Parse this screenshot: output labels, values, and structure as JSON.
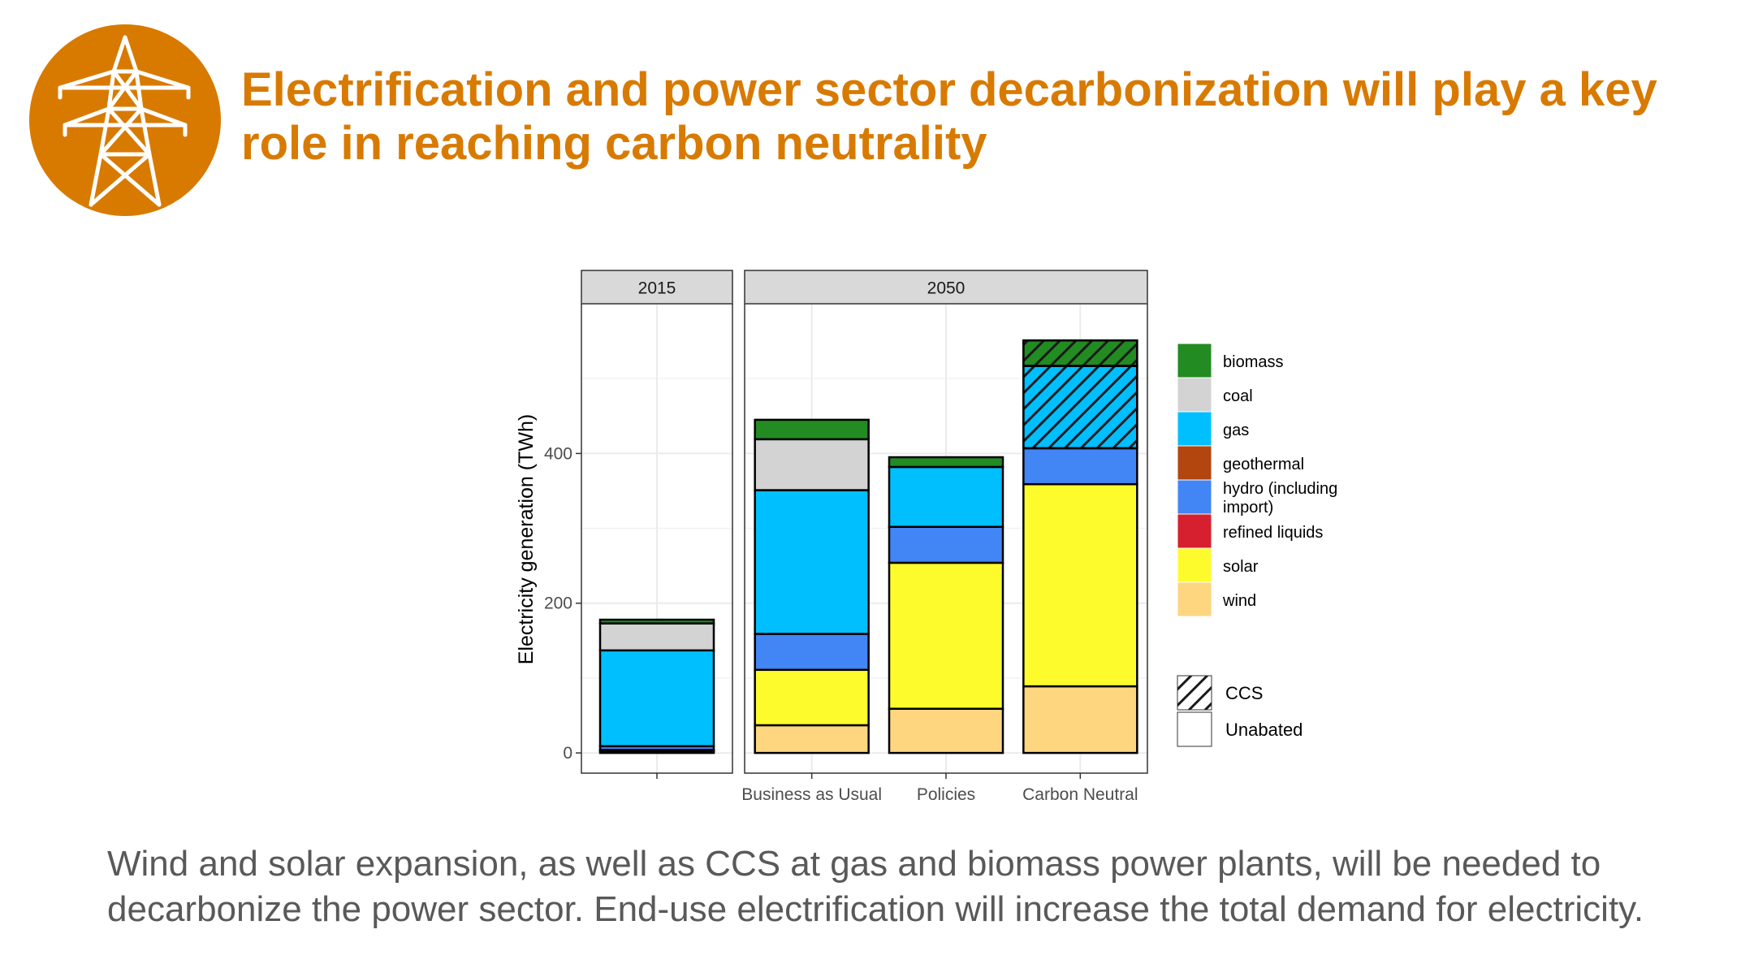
{
  "slide": {
    "title": "Electrification and power sector decarbonization will play a key role in reaching carbon neutrality",
    "caption_line1": "Wind and solar expansion, as well as CCS at gas and biomass power plants, will be needed to",
    "caption_line2": "decarbonize the power sector. End-use electrification will increase the total demand for electricity.",
    "icon": "power-transmission-tower-icon",
    "accent_color": "#D87A00"
  },
  "chart_data": {
    "type": "bar",
    "stacked": true,
    "ylabel": "Electricity generation (TWh)",
    "ylim": [
      -27,
      600
    ],
    "yticks": [
      0,
      200,
      400
    ],
    "grid": true,
    "legend_position": "right",
    "panels": [
      {
        "label": "2015",
        "categories": [
          ""
        ],
        "series": [
          {
            "name": "wind",
            "color": "#FDD67F",
            "values": [
              {
                "unabated": 2,
                "ccs": 0
              }
            ]
          },
          {
            "name": "solar",
            "color": "#FEFB2D",
            "values": [
              {
                "unabated": 1,
                "ccs": 0
              }
            ]
          },
          {
            "name": "refined liquids",
            "color": "#D7202F",
            "values": [
              {
                "unabated": 1,
                "ccs": 0
              }
            ]
          },
          {
            "name": "hydro (including import)",
            "color": "#4285F4",
            "values": [
              {
                "unabated": 5,
                "ccs": 0
              }
            ]
          },
          {
            "name": "geothermal",
            "color": "#B2460E",
            "values": [
              {
                "unabated": 0,
                "ccs": 0
              }
            ]
          },
          {
            "name": "gas",
            "color": "#00BFFF",
            "values": [
              {
                "unabated": 128,
                "ccs": 0
              }
            ]
          },
          {
            "name": "coal",
            "color": "#D3D3D3",
            "values": [
              {
                "unabated": 36,
                "ccs": 0
              }
            ]
          },
          {
            "name": "biomass",
            "color": "#228B22",
            "values": [
              {
                "unabated": 5,
                "ccs": 0
              }
            ]
          }
        ]
      },
      {
        "label": "2050",
        "categories": [
          "Business as Usual",
          "Policies",
          "Carbon Neutral"
        ],
        "series": [
          {
            "name": "wind",
            "color": "#FDD67F",
            "values": [
              {
                "unabated": 37,
                "ccs": 0
              },
              {
                "unabated": 59,
                "ccs": 0
              },
              {
                "unabated": 89,
                "ccs": 0
              }
            ]
          },
          {
            "name": "solar",
            "color": "#FEFB2D",
            "values": [
              {
                "unabated": 74,
                "ccs": 0
              },
              {
                "unabated": 195,
                "ccs": 0
              },
              {
                "unabated": 270,
                "ccs": 0
              }
            ]
          },
          {
            "name": "refined liquids",
            "color": "#D7202F",
            "values": [
              {
                "unabated": 0,
                "ccs": 0
              },
              {
                "unabated": 0,
                "ccs": 0
              },
              {
                "unabated": 0,
                "ccs": 0
              }
            ]
          },
          {
            "name": "hydro (including import)",
            "color": "#4285F4",
            "values": [
              {
                "unabated": 48,
                "ccs": 0
              },
              {
                "unabated": 48,
                "ccs": 0
              },
              {
                "unabated": 48,
                "ccs": 0
              }
            ]
          },
          {
            "name": "geothermal",
            "color": "#B2460E",
            "values": [
              {
                "unabated": 0,
                "ccs": 0
              },
              {
                "unabated": 0,
                "ccs": 0
              },
              {
                "unabated": 0,
                "ccs": 0
              }
            ]
          },
          {
            "name": "gas",
            "color": "#00BFFF",
            "values": [
              {
                "unabated": 192,
                "ccs": 0
              },
              {
                "unabated": 80,
                "ccs": 0
              },
              {
                "unabated": 0,
                "ccs": 110
              }
            ]
          },
          {
            "name": "coal",
            "color": "#D3D3D3",
            "values": [
              {
                "unabated": 68,
                "ccs": 0
              },
              {
                "unabated": 0,
                "ccs": 0
              },
              {
                "unabated": 0,
                "ccs": 0
              }
            ]
          },
          {
            "name": "biomass",
            "color": "#228B22",
            "values": [
              {
                "unabated": 26,
                "ccs": 0
              },
              {
                "unabated": 13,
                "ccs": 0
              },
              {
                "unabated": 0,
                "ccs": 34
              }
            ]
          }
        ]
      }
    ],
    "legend": {
      "fuels": [
        {
          "name": "biomass",
          "color": "#228B22"
        },
        {
          "name": "coal",
          "color": "#D3D3D3"
        },
        {
          "name": "gas",
          "color": "#00BFFF"
        },
        {
          "name": "geothermal",
          "color": "#B2460E"
        },
        {
          "name": "hydro (including import)",
          "color": "#4285F4"
        },
        {
          "name": "refined liquids",
          "color": "#D7202F"
        },
        {
          "name": "solar",
          "color": "#FEFB2D"
        },
        {
          "name": "wind",
          "color": "#FDD67F"
        }
      ],
      "technology": [
        {
          "name": "CCS",
          "pattern": "hatched"
        },
        {
          "name": "Unabated",
          "pattern": "none"
        }
      ]
    }
  }
}
